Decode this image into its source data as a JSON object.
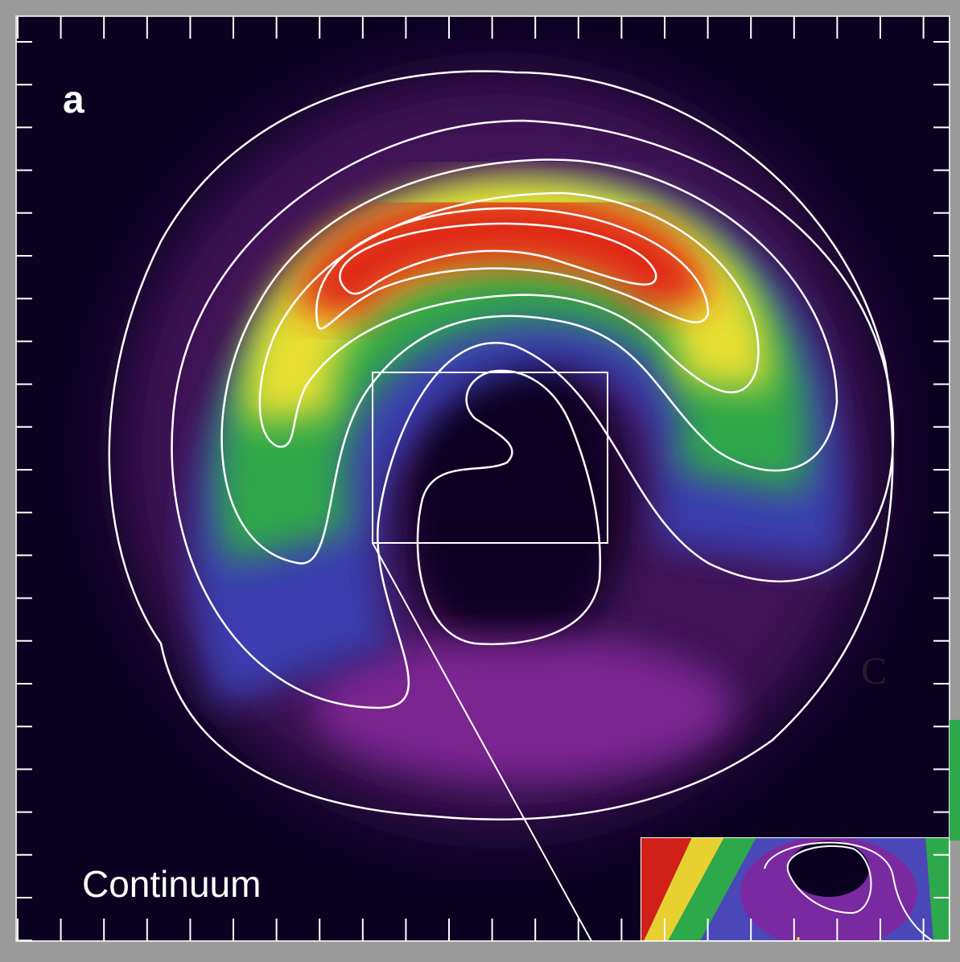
{
  "panel_label": "a",
  "caption": "Continuum",
  "side_label": "C"
}
